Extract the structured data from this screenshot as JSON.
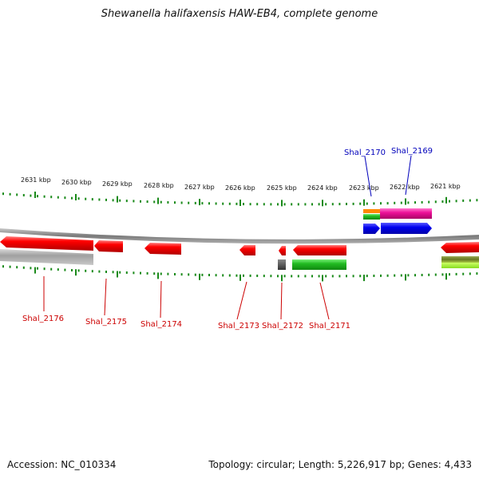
{
  "title": "Shewanella halifaxensis HAW-EB4, complete genome",
  "footer": {
    "accession": "Accession: NC_010334",
    "summary": "Topology: circular; Length: 5,226,917 bp; Genes: 4,433"
  },
  "colors": {
    "forward_gene": "#ee1111",
    "reverse_gene_label": "#cc0000",
    "forward_label": "#0000bb",
    "tick": "#1a8a1a",
    "backbone": "#8a8a8a",
    "blue": "#0000ee",
    "magenta": "#ee1199",
    "green": "#22bb22",
    "orange": "#ff8800"
  },
  "kbp_labels": [
    "2631 kbp",
    "2630 kbp",
    "2629 kbp",
    "2628 kbp",
    "2627 kbp",
    "2626 kbp",
    "2625 kbp",
    "2624 kbp",
    "2623 kbp",
    "2622 kbp",
    "2621 kbp"
  ],
  "gene_labels_bottom": [
    "Shal_2176",
    "Shal_2175",
    "Shal_2174",
    "Shal_2173",
    "Shal_2172",
    "Shal_2171"
  ],
  "gene_labels_top": [
    "Shal_2170",
    "Shal_2169"
  ]
}
